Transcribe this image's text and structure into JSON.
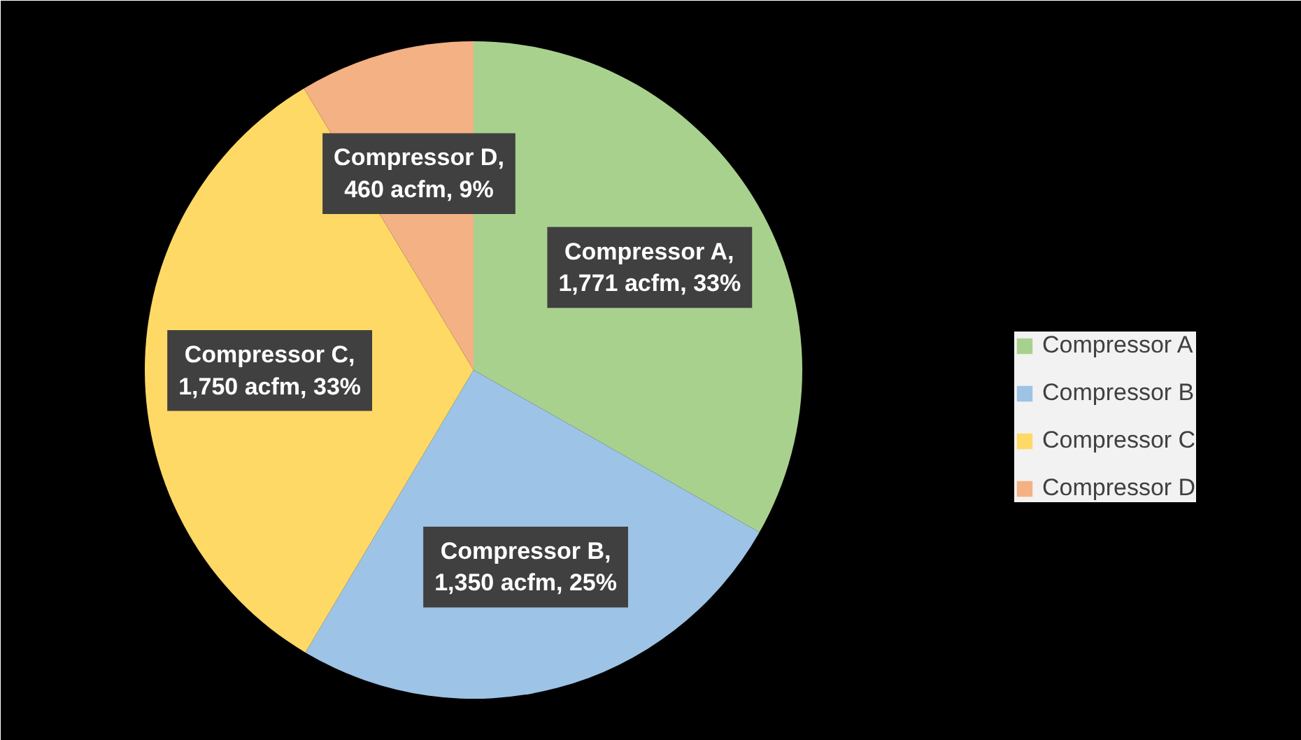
{
  "chart_data": {
    "type": "pie",
    "categories": [
      "Compressor A",
      "Compressor B",
      "Compressor C",
      "Compressor D"
    ],
    "values": [
      1771,
      1350,
      1750,
      460
    ],
    "colors": [
      "#a9d18e",
      "#9dc3e6",
      "#ffd966",
      "#f4b183"
    ],
    "value_labels": [
      "Compressor A,\n1,771 acfm, 33%",
      "Compressor B,\n1,350 acfm, 25%",
      "Compressor C,\n1,750 acfm, 33%",
      "Compressor D,\n460 acfm, 9%"
    ],
    "legend": "right"
  }
}
